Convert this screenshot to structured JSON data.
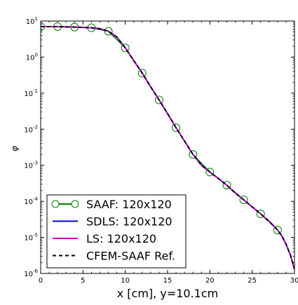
{
  "chart_data": {
    "type": "line",
    "xlabel": "x [cm], y=10.1cm",
    "ylabel": "φ",
    "xlim": [
      0,
      30
    ],
    "ylim": [
      1e-06,
      10
    ],
    "yscale": "log",
    "grid": false,
    "legend_placement": "lower-left",
    "x_ticks": [
      0,
      5,
      10,
      15,
      20,
      25,
      30
    ],
    "x_tick_labels": [
      "0",
      "5",
      "10",
      "15",
      "20",
      "25",
      "30"
    ],
    "y_ticks": [
      1e-06,
      1e-05,
      0.0001,
      0.001,
      0.01,
      0.1,
      1,
      10
    ],
    "y_tick_labels": [
      {
        "base": "10",
        "exp": "-6"
      },
      {
        "base": "10",
        "exp": "-5"
      },
      {
        "base": "10",
        "exp": "-4"
      },
      {
        "base": "10",
        "exp": "-3"
      },
      {
        "base": "10",
        "exp": "-2"
      },
      {
        "base": "10",
        "exp": "-1"
      },
      {
        "base": "10",
        "exp": "0"
      },
      {
        "base": "10",
        "exp": "1"
      }
    ],
    "series": [
      {
        "name": "SAAF: 120x120",
        "color": "#008000",
        "style": "line-with-open-circles",
        "x": [
          0,
          2,
          4,
          6,
          8,
          10,
          12,
          14,
          16,
          18,
          20,
          22,
          24,
          26,
          28
        ],
        "y": [
          7.0,
          7.0,
          6.8,
          6.5,
          5.2,
          1.8,
          0.36,
          0.065,
          0.011,
          0.002,
          0.00065,
          0.00028,
          0.00011,
          4.5e-05,
          1.6e-05
        ]
      },
      {
        "name": "SDLS: 120x120",
        "color": "#0000ff",
        "style": "solid",
        "x": [
          0,
          2,
          4,
          6,
          7,
          8,
          9,
          10,
          11,
          12,
          13,
          14,
          15,
          16,
          17,
          18,
          19,
          20,
          21,
          22,
          23,
          24,
          25,
          26,
          27,
          28,
          28.5,
          29,
          29.5,
          30
        ],
        "y": [
          7.0,
          7.0,
          6.8,
          6.5,
          6.1,
          5.2,
          3.6,
          1.8,
          0.8,
          0.36,
          0.15,
          0.065,
          0.027,
          0.011,
          0.0047,
          0.002,
          0.001,
          0.00065,
          0.00043,
          0.00028,
          0.00017,
          0.00011,
          7e-05,
          4.5e-05,
          2.8e-05,
          1.6e-05,
          1.1e-05,
          6.5e-06,
          3.3e-06,
          1.3e-06
        ]
      },
      {
        "name": "LS: 120x120",
        "color": "#bf00bf",
        "style": "solid",
        "x": [
          0,
          2,
          4,
          6,
          7,
          8,
          9,
          10,
          11,
          12,
          13,
          14,
          15,
          16,
          17,
          18,
          19,
          20,
          21,
          22,
          23,
          24,
          25,
          26,
          27,
          28,
          28.5,
          29,
          29.5,
          30
        ],
        "y": [
          7.0,
          7.0,
          6.8,
          6.5,
          6.1,
          5.2,
          3.6,
          1.8,
          0.8,
          0.36,
          0.15,
          0.065,
          0.027,
          0.011,
          0.0047,
          0.002,
          0.001,
          0.00065,
          0.00043,
          0.00028,
          0.00017,
          0.00011,
          7e-05,
          4.5e-05,
          2.8e-05,
          1.6e-05,
          1.1e-05,
          6.5e-06,
          3.3e-06,
          1.3e-06
        ]
      },
      {
        "name": "CFEM-SAAF Ref.",
        "color": "#000000",
        "style": "dashed",
        "x": [
          0,
          2,
          4,
          6,
          7,
          8,
          9,
          10,
          11,
          12,
          13,
          14,
          15,
          16,
          17,
          18,
          19,
          20,
          21,
          22,
          23,
          24,
          25,
          26,
          27,
          28,
          28.5,
          29,
          29.5,
          30
        ],
        "y": [
          7.0,
          7.0,
          6.8,
          6.5,
          6.1,
          5.2,
          3.6,
          1.8,
          0.8,
          0.36,
          0.15,
          0.065,
          0.027,
          0.011,
          0.0047,
          0.002,
          0.001,
          0.00065,
          0.00043,
          0.00028,
          0.00017,
          0.00011,
          7e-05,
          4.5e-05,
          2.8e-05,
          1.6e-05,
          1.1e-05,
          6.5e-06,
          3.3e-06,
          1.3e-06
        ]
      }
    ]
  }
}
